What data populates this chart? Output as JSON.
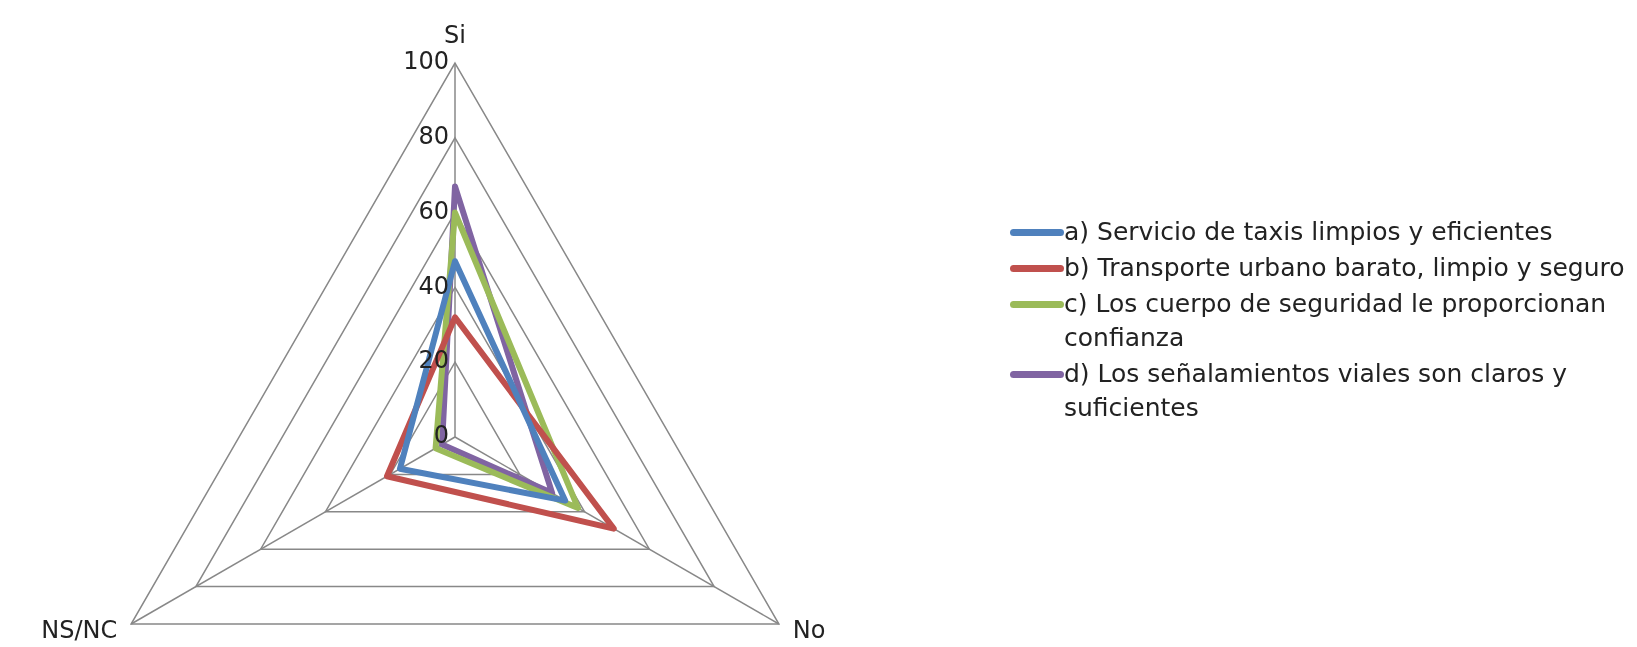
{
  "chart_data": {
    "type": "radar",
    "categories": [
      "Si",
      "No",
      "NS/NC"
    ],
    "series": [
      {
        "name": "a) Servicio de taxis limpios y eficientes",
        "color": "#4f81bd",
        "values": [
          47,
          34,
          17
        ]
      },
      {
        "name": "b) Transporte urbano barato, limpio y seguro",
        "color": "#c0504d",
        "values": [
          32,
          49,
          21
        ]
      },
      {
        "name": "c) Los cuerpo de seguridad le proporcionan confianza",
        "color": "#9bbb59",
        "values": [
          60,
          38,
          6
        ]
      },
      {
        "name": "d) Los señalamientos viales son claros y suficientes",
        "color": "#8064a2",
        "values": [
          67,
          30,
          4
        ]
      }
    ],
    "ylim": [
      0,
      100
    ],
    "yticks": [
      0,
      20,
      40,
      60,
      80,
      100
    ],
    "grid": true,
    "legend": "right",
    "marker": "none",
    "line_style": "solid"
  }
}
